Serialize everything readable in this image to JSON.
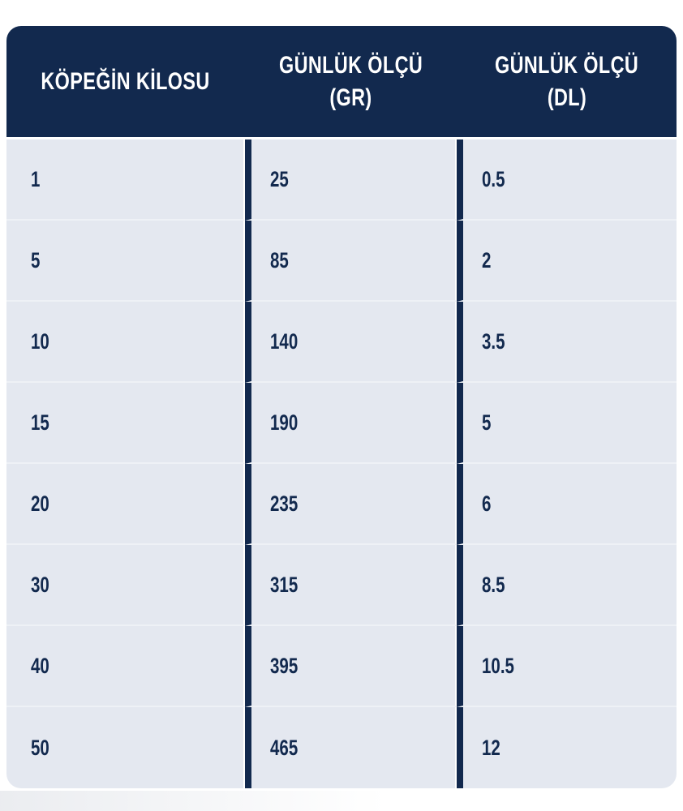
{
  "chart_data": {
    "type": "table",
    "columns": [
      {
        "line1": "KÖPEĞİN KİLOSU",
        "line2": ""
      },
      {
        "line1": "GÜNLÜK ÖLÇÜ",
        "line2": "(GR)"
      },
      {
        "line1": "GÜNLÜK ÖLÇÜ",
        "line2": "(DL)"
      }
    ],
    "rows": [
      [
        "1",
        "25",
        "0.5"
      ],
      [
        "5",
        "85",
        "2"
      ],
      [
        "10",
        "140",
        "3.5"
      ],
      [
        "15",
        "190",
        "5"
      ],
      [
        "20",
        "235",
        "6"
      ],
      [
        "30",
        "315",
        "8.5"
      ],
      [
        "40",
        "395",
        "10.5"
      ],
      [
        "50",
        "465",
        "12"
      ]
    ]
  },
  "colors": {
    "header_bg": "#12294e",
    "cell_bg": "#e4e8f0",
    "text": "#12294e",
    "row_divider": "#eef1f6",
    "hairline": "#ffffff",
    "page_bg": "#ffffff"
  }
}
